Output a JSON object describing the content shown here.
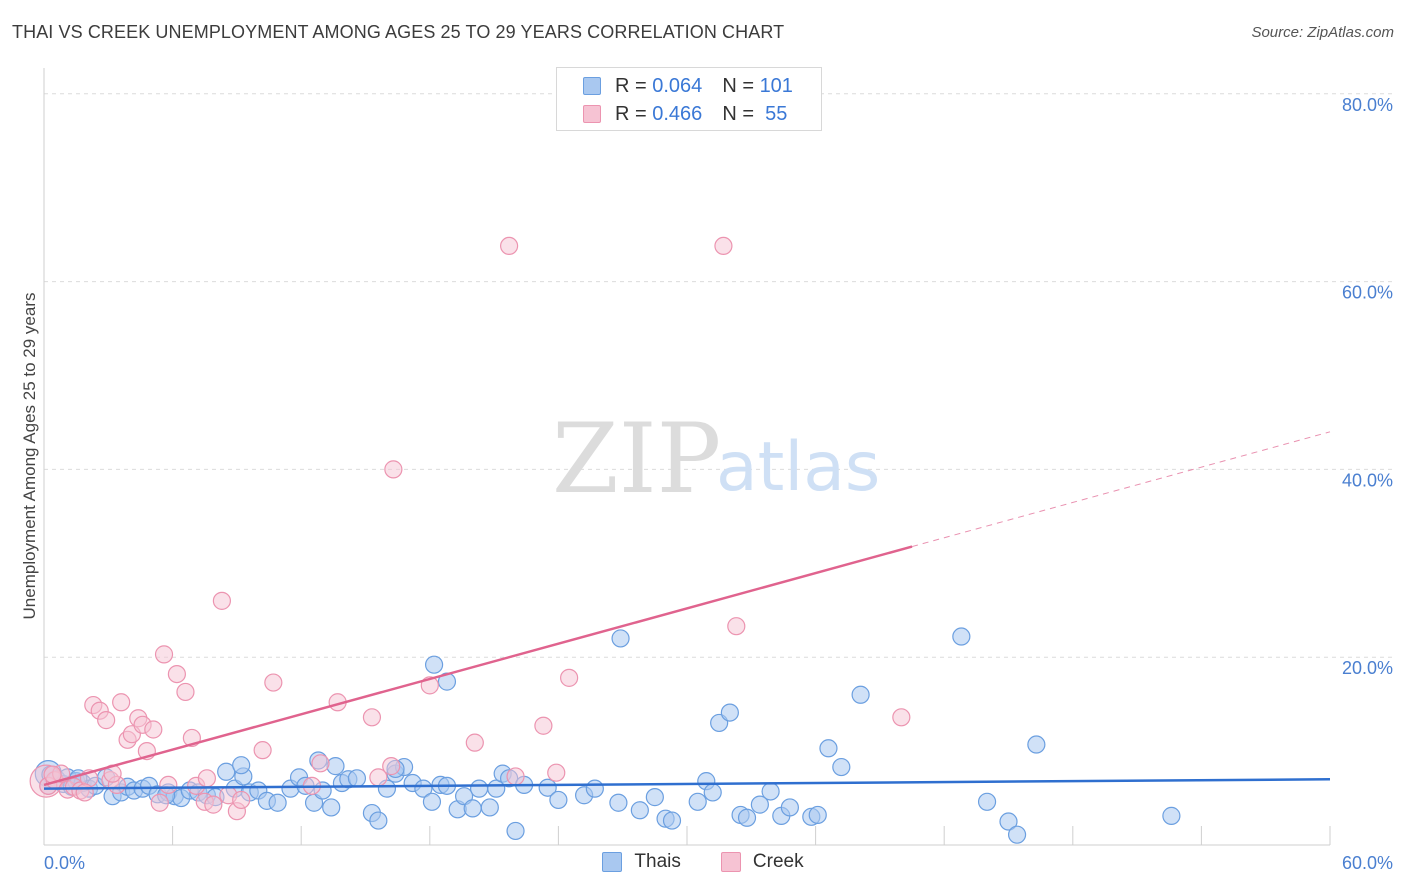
{
  "header": {
    "title": "THAI VS CREEK UNEMPLOYMENT AMONG AGES 25 TO 29 YEARS CORRELATION CHART",
    "source": "Source: ZipAtlas.com"
  },
  "legend": {
    "rows": [
      {
        "r_label": "R =",
        "r_value": "0.064",
        "n_label": "N =",
        "n_value": "101"
      },
      {
        "r_label": "R =",
        "r_value": "0.466",
        "n_label": "N =",
        "n_value": "55"
      }
    ]
  },
  "bottom_legend": {
    "thais": "Thais",
    "creek": "Creek"
  },
  "watermark": {
    "zip": "ZIP",
    "atlas": "atlas"
  },
  "colors": {
    "blue_fill": "#a9c8f0",
    "blue_stroke": "#6b9fe0",
    "blue_line": "#2f6fcf",
    "pink_fill": "#f6c3d3",
    "pink_stroke": "#ec94b0",
    "pink_line": "#e0638e",
    "grid": "#dcdcdc",
    "tick_text": "#4a7fd0"
  },
  "chart_data": {
    "type": "scatter",
    "title": "THAI VS CREEK UNEMPLOYMENT AMONG AGES 25 TO 29 YEARS CORRELATION CHART",
    "xlabel": "",
    "ylabel": "Unemployment Among Ages 25 to 29 years",
    "xlim": [
      0,
      60
    ],
    "ylim": [
      0,
      82
    ],
    "x_tick_labels": [
      "0.0%",
      "60.0%"
    ],
    "y_ticks": [
      20,
      40,
      60,
      80
    ],
    "y_tick_labels": [
      "20.0%",
      "40.0%",
      "60.0%",
      "80.0%"
    ],
    "grid": true,
    "legend_position": "top-center",
    "series": [
      {
        "name": "Thais",
        "R": 0.064,
        "N": 101,
        "trend": {
          "x0": 0,
          "y0": 6.0,
          "x1": 60,
          "y1": 7.0,
          "solid_until": 60
        },
        "points": [
          [
            0.3,
            7.5
          ],
          [
            0.6,
            7.0
          ],
          [
            0.9,
            6.5
          ],
          [
            1.1,
            7.2
          ],
          [
            1.3,
            6.2
          ],
          [
            1.5,
            6.8
          ],
          [
            1.8,
            6.6
          ],
          [
            2.1,
            6.0
          ],
          [
            2.4,
            6.3
          ],
          [
            2.9,
            7.2
          ],
          [
            3.2,
            5.2
          ],
          [
            3.6,
            5.6
          ],
          [
            3.9,
            6.2
          ],
          [
            4.2,
            5.8
          ],
          [
            4.6,
            6.0
          ],
          [
            4.9,
            6.3
          ],
          [
            5.3,
            5.4
          ],
          [
            5.8,
            5.6
          ],
          [
            6.1,
            5.2
          ],
          [
            6.4,
            5.0
          ],
          [
            6.8,
            5.8
          ],
          [
            7.2,
            5.6
          ],
          [
            7.6,
            5.3
          ],
          [
            8.0,
            5.1
          ],
          [
            8.5,
            7.8
          ],
          [
            8.9,
            6.0
          ],
          [
            9.3,
            7.3
          ],
          [
            9.6,
            5.6
          ],
          [
            10.0,
            5.8
          ],
          [
            10.4,
            4.7
          ],
          [
            10.9,
            4.5
          ],
          [
            11.5,
            6.0
          ],
          [
            11.9,
            7.2
          ],
          [
            12.2,
            6.3
          ],
          [
            12.6,
            4.5
          ],
          [
            13.0,
            5.8
          ],
          [
            13.4,
            4.0
          ],
          [
            13.9,
            6.6
          ],
          [
            14.2,
            7.0
          ],
          [
            14.6,
            7.1
          ],
          [
            15.3,
            3.4
          ],
          [
            15.6,
            2.6
          ],
          [
            16.0,
            6.0
          ],
          [
            16.4,
            7.6
          ],
          [
            16.8,
            8.3
          ],
          [
            17.2,
            6.6
          ],
          [
            17.7,
            6.0
          ],
          [
            18.1,
            4.6
          ],
          [
            18.5,
            6.4
          ],
          [
            18.8,
            6.3
          ],
          [
            19.3,
            3.8
          ],
          [
            19.6,
            5.2
          ],
          [
            20.0,
            3.9
          ],
          [
            20.3,
            6.0
          ],
          [
            20.8,
            4.0
          ],
          [
            21.1,
            6.0
          ],
          [
            21.4,
            7.6
          ],
          [
            21.7,
            7.1
          ],
          [
            22.0,
            1.5
          ],
          [
            22.4,
            6.4
          ],
          [
            23.5,
            6.1
          ],
          [
            24.0,
            4.8
          ],
          [
            25.2,
            5.3
          ],
          [
            25.7,
            6.0
          ],
          [
            26.8,
            4.5
          ],
          [
            27.8,
            3.7
          ],
          [
            28.5,
            5.1
          ],
          [
            29.0,
            2.8
          ],
          [
            29.3,
            2.6
          ],
          [
            30.5,
            4.6
          ],
          [
            30.9,
            6.8
          ],
          [
            31.2,
            5.6
          ],
          [
            31.5,
            13.0
          ],
          [
            32.0,
            14.1
          ],
          [
            32.5,
            3.2
          ],
          [
            32.8,
            2.9
          ],
          [
            33.4,
            4.3
          ],
          [
            33.9,
            5.7
          ],
          [
            34.4,
            3.1
          ],
          [
            34.8,
            4.0
          ],
          [
            35.8,
            3.0
          ],
          [
            36.1,
            3.2
          ],
          [
            36.6,
            10.3
          ],
          [
            37.2,
            8.3
          ],
          [
            38.1,
            16.0
          ],
          [
            26.9,
            22.0
          ],
          [
            42.8,
            22.2
          ],
          [
            44.0,
            4.6
          ],
          [
            45.0,
            2.5
          ],
          [
            45.4,
            1.1
          ],
          [
            46.3,
            10.7
          ],
          [
            52.6,
            3.1
          ],
          [
            18.2,
            19.2
          ],
          [
            18.8,
            17.4
          ],
          [
            9.2,
            8.5
          ],
          [
            12.8,
            9.0
          ],
          [
            13.6,
            8.4
          ],
          [
            16.4,
            8.1
          ],
          [
            0.2,
            6.3
          ],
          [
            1.6,
            7.1
          ],
          [
            5.7,
            5.3
          ]
        ]
      },
      {
        "name": "Creek",
        "R": 0.466,
        "N": 55,
        "trend": {
          "x0": 0,
          "y0": 6.4,
          "x1": 60,
          "y1": 44.0,
          "solid_until": 40.5
        },
        "points": [
          [
            0.2,
            6.3
          ],
          [
            0.5,
            6.9
          ],
          [
            0.8,
            7.6
          ],
          [
            1.1,
            5.9
          ],
          [
            1.4,
            6.2
          ],
          [
            1.7,
            5.8
          ],
          [
            2.1,
            7.1
          ],
          [
            2.3,
            14.9
          ],
          [
            2.6,
            14.3
          ],
          [
            2.9,
            13.3
          ],
          [
            3.1,
            6.9
          ],
          [
            3.4,
            6.4
          ],
          [
            3.6,
            15.2
          ],
          [
            3.9,
            11.2
          ],
          [
            4.1,
            11.8
          ],
          [
            4.4,
            13.5
          ],
          [
            4.6,
            12.8
          ],
          [
            4.8,
            10.0
          ],
          [
            5.1,
            12.3
          ],
          [
            5.4,
            4.5
          ],
          [
            5.6,
            20.3
          ],
          [
            6.2,
            18.2
          ],
          [
            6.6,
            16.3
          ],
          [
            6.9,
            11.4
          ],
          [
            7.1,
            6.3
          ],
          [
            7.5,
            4.6
          ],
          [
            7.9,
            4.3
          ],
          [
            8.3,
            26.0
          ],
          [
            8.6,
            5.3
          ],
          [
            9.0,
            3.6
          ],
          [
            10.2,
            10.1
          ],
          [
            10.7,
            17.3
          ],
          [
            12.5,
            6.3
          ],
          [
            12.9,
            8.7
          ],
          [
            13.7,
            15.2
          ],
          [
            15.3,
            13.6
          ],
          [
            15.6,
            7.2
          ],
          [
            16.2,
            8.4
          ],
          [
            16.3,
            40.0
          ],
          [
            18.0,
            17.0
          ],
          [
            20.1,
            10.9
          ],
          [
            21.7,
            63.8
          ],
          [
            23.3,
            12.7
          ],
          [
            23.9,
            7.7
          ],
          [
            24.5,
            17.8
          ],
          [
            31.7,
            63.8
          ],
          [
            32.3,
            23.3
          ],
          [
            40.0,
            13.6
          ],
          [
            1.9,
            5.6
          ],
          [
            0.4,
            7.5
          ],
          [
            3.2,
            7.6
          ],
          [
            5.8,
            6.4
          ],
          [
            7.6,
            7.1
          ],
          [
            9.2,
            4.8
          ],
          [
            22.0,
            7.3
          ]
        ]
      }
    ]
  }
}
